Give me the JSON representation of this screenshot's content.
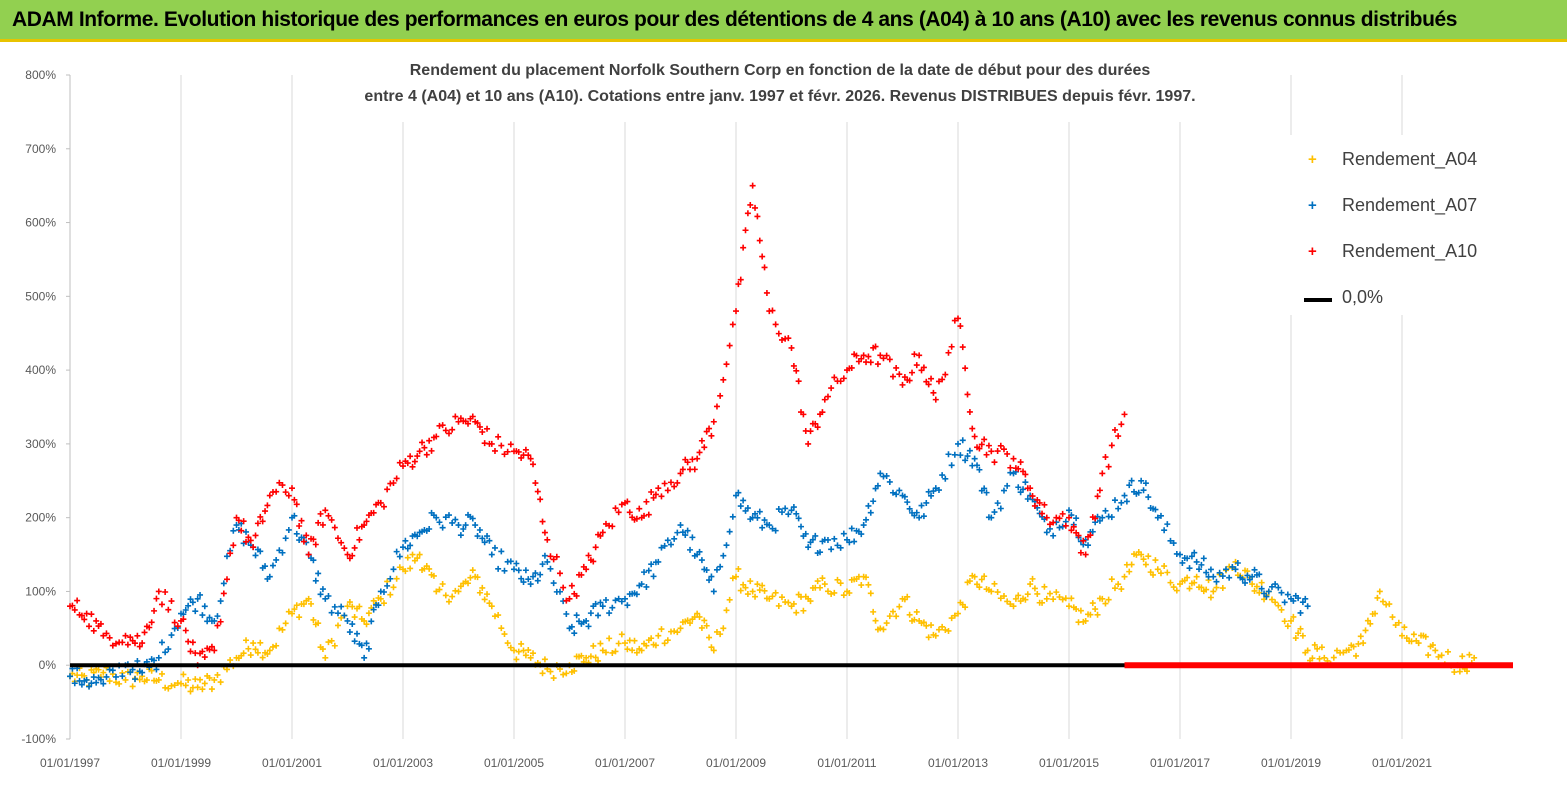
{
  "header": {
    "banner_text": "ADAM Informe. Evolution historique des performances en euros pour des détentions de 4 ans (A04) à 10 ans (A10) avec les revenus connus distribués"
  },
  "chart_data": {
    "type": "scatter",
    "title_line1": "Rendement du placement Norfolk Southern Corp en fonction de la date de début pour des durées",
    "title_line2": "entre 4 (A04) et 10 ans (A10).  Cotations entre janv. 1997 et févr. 2026. Revenus DISTRIBUES depuis févr. 1997.",
    "x_tick_labels": [
      "01/01/1997",
      "01/01/1999",
      "01/01/2001",
      "01/01/2003",
      "01/01/2005",
      "01/01/2007",
      "01/01/2009",
      "01/01/2011",
      "01/01/2013",
      "01/01/2015",
      "01/01/2017",
      "01/01/2019",
      "01/01/2021"
    ],
    "xlim": [
      1997.0,
      2023.0
    ],
    "y_tick_labels": [
      "800%",
      "700%",
      "600%",
      "500%",
      "400%",
      "300%",
      "200%",
      "100%",
      "0%",
      "-100%"
    ],
    "ylim": [
      -100,
      800
    ],
    "grid": "vertical",
    "legend_position": "right",
    "colors": {
      "A04": "#ffc000",
      "A07": "#0070c0",
      "A10": "#ff0000",
      "zero": "#000000"
    },
    "series": [
      {
        "name": "Rendement_A04",
        "color": "#ffc000",
        "x": [
          1997.0,
          1997.3,
          1997.6,
          1998.0,
          1998.3,
          1998.6,
          1999.0,
          1999.3,
          1999.6,
          2000.0,
          2000.3,
          2000.6,
          2001.0,
          2001.3,
          2001.6,
          2002.0,
          2002.3,
          2002.6,
          2003.0,
          2003.3,
          2003.6,
          2004.0,
          2004.3,
          2004.6,
          2005.0,
          2005.3,
          2005.6,
          2006.0,
          2006.3,
          2006.6,
          2007.0,
          2007.3,
          2007.6,
          2008.0,
          2008.3,
          2008.6,
          2009.0,
          2009.3,
          2009.6,
          2010.0,
          2010.3,
          2010.6,
          2011.0,
          2011.3,
          2011.6,
          2012.0,
          2012.3,
          2012.6,
          2013.0,
          2013.3,
          2013.6,
          2014.0,
          2014.3,
          2014.6,
          2015.0,
          2015.3,
          2015.6,
          2016.0,
          2016.3,
          2016.6,
          2017.0,
          2017.3,
          2017.6,
          2018.0,
          2018.3,
          2018.6,
          2019.0,
          2019.3,
          2019.6,
          2020.0,
          2020.3,
          2020.6,
          2021.0,
          2021.3,
          2021.6,
          2022.0,
          2022.3
        ],
        "values": [
          -15,
          -20,
          -10,
          -20,
          -15,
          -20,
          -25,
          -30,
          -20,
          10,
          30,
          20,
          70,
          90,
          10,
          80,
          60,
          90,
          130,
          150,
          100,
          100,
          120,
          80,
          20,
          10,
          -5,
          0,
          10,
          20,
          30,
          20,
          40,
          50,
          70,
          20,
          120,
          100,
          90,
          80,
          90,
          110,
          100,
          120,
          50,
          90,
          60,
          40,
          70,
          120,
          100,
          80,
          110,
          90,
          80,
          60,
          90,
          120,
          150,
          130,
          110,
          120,
          100,
          140,
          110,
          100,
          60,
          20,
          10,
          20,
          30,
          100,
          40,
          30,
          20,
          0,
          10
        ]
      },
      {
        "name": "Rendement_A07",
        "color": "#0070c0",
        "x": [
          1997.0,
          1997.3,
          1997.6,
          1998.0,
          1998.3,
          1998.6,
          1999.0,
          1999.3,
          1999.6,
          2000.0,
          2000.3,
          2000.6,
          2001.0,
          2001.3,
          2001.6,
          2002.0,
          2002.3,
          2002.6,
          2003.0,
          2003.3,
          2003.6,
          2004.0,
          2004.3,
          2004.6,
          2005.0,
          2005.3,
          2005.6,
          2006.0,
          2006.3,
          2006.6,
          2007.0,
          2007.3,
          2007.6,
          2008.0,
          2008.3,
          2008.6,
          2009.0,
          2009.3,
          2009.6,
          2010.0,
          2010.3,
          2010.6,
          2011.0,
          2011.3,
          2011.6,
          2012.0,
          2012.3,
          2012.6,
          2013.0,
          2013.3,
          2013.6,
          2014.0,
          2014.3,
          2014.6,
          2015.0,
          2015.3,
          2015.6,
          2016.0,
          2016.3,
          2016.6,
          2017.0,
          2017.3,
          2017.6,
          2018.0,
          2018.3,
          2018.6,
          2019.0,
          2019.3
        ],
        "values": [
          -15,
          -20,
          -25,
          0,
          -10,
          10,
          70,
          90,
          60,
          190,
          160,
          120,
          200,
          150,
          90,
          60,
          10,
          100,
          160,
          180,
          200,
          190,
          190,
          150,
          130,
          110,
          140,
          50,
          60,
          80,
          90,
          110,
          140,
          190,
          150,
          100,
          230,
          200,
          190,
          210,
          160,
          170,
          170,
          190,
          260,
          230,
          200,
          240,
          300,
          280,
          200,
          260,
          230,
          180,
          210,
          170,
          200,
          230,
          250,
          200,
          150,
          140,
          120,
          130,
          120,
          100,
          90,
          80
        ]
      },
      {
        "name": "Rendement_A10",
        "color": "#ff0000",
        "x": [
          1997.0,
          1997.3,
          1997.6,
          1998.0,
          1998.3,
          1998.6,
          1999.0,
          1999.3,
          1999.6,
          2000.0,
          2000.3,
          2000.6,
          2001.0,
          2001.3,
          2001.6,
          2002.0,
          2002.3,
          2002.6,
          2003.0,
          2003.3,
          2003.6,
          2004.0,
          2004.3,
          2004.6,
          2005.0,
          2005.3,
          2005.6,
          2006.0,
          2006.3,
          2006.6,
          2007.0,
          2007.3,
          2007.6,
          2008.0,
          2008.3,
          2008.6,
          2009.0,
          2009.3,
          2009.6,
          2010.0,
          2010.3,
          2010.6,
          2011.0,
          2011.3,
          2011.6,
          2012.0,
          2012.3,
          2012.6,
          2013.0,
          2013.3,
          2013.6,
          2014.0,
          2014.3,
          2014.6,
          2015.0,
          2015.3,
          2015.6,
          2016.0
        ],
        "values": [
          80,
          70,
          40,
          40,
          30,
          100,
          60,
          0,
          20,
          200,
          160,
          230,
          240,
          150,
          210,
          150,
          190,
          220,
          270,
          290,
          310,
          330,
          330,
          300,
          290,
          280,
          170,
          90,
          130,
          180,
          220,
          200,
          240,
          260,
          280,
          330,
          480,
          650,
          480,
          430,
          300,
          360,
          400,
          420,
          420,
          380,
          420,
          360,
          470,
          310,
          290,
          280,
          240,
          200,
          200,
          150,
          260,
          340
        ]
      },
      {
        "name": "0,0%",
        "color": "#000000",
        "x": [
          1997.0,
          2016.0
        ],
        "values": [
          0,
          0
        ]
      }
    ],
    "zero_band_A10": {
      "x": [
        2016.0,
        2023.0
      ],
      "value": 0
    },
    "legend": [
      {
        "label": "Rendement_A04",
        "marker": "+"
      },
      {
        "label": "Rendement_A07",
        "marker": "+"
      },
      {
        "label": "Rendement_A10",
        "marker": "+"
      },
      {
        "label": "0,0%",
        "marker": "line"
      }
    ]
  }
}
